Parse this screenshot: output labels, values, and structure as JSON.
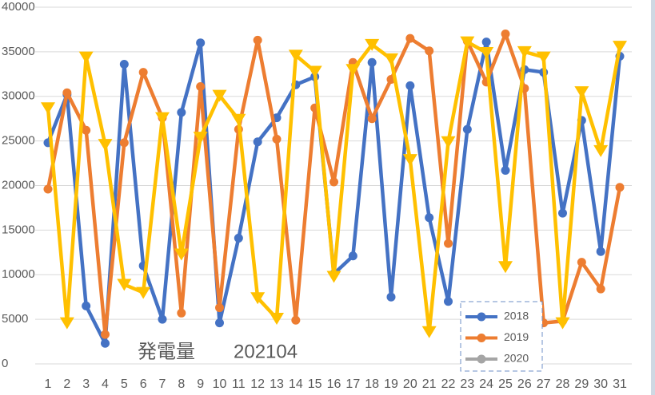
{
  "chart_data": {
    "type": "line",
    "title": "発電量　　202104",
    "categories": [
      "1",
      "2",
      "3",
      "4",
      "5",
      "6",
      "7",
      "8",
      "9",
      "10",
      "11",
      "12",
      "13",
      "14",
      "15",
      "16",
      "17",
      "18",
      "19",
      "20",
      "21",
      "22",
      "23",
      "24",
      "25",
      "26",
      "27",
      "28",
      "29",
      "30",
      "31"
    ],
    "series": [
      {
        "name": "2018",
        "color": "#4472c4",
        "marker": "circle",
        "values": [
          24800,
          30200,
          6500,
          2300,
          33600,
          11000,
          5000,
          28200,
          36000,
          4600,
          14100,
          24900,
          27600,
          31300,
          32200,
          10100,
          12100,
          33800,
          7500,
          31200,
          16400,
          7000,
          26300,
          36100,
          21700,
          33000,
          32700,
          16900,
          27300,
          12600,
          34500
        ]
      },
      {
        "name": "2019",
        "color": "#ed7d31",
        "marker": "circle",
        "values": [
          19600,
          30400,
          26200,
          3300,
          24800,
          32700,
          27600,
          5700,
          31100,
          6300,
          26300,
          36300,
          25200,
          4900,
          28700,
          20400,
          33800,
          27500,
          31900,
          36500,
          35100,
          13500,
          36200,
          31600,
          37000,
          30900,
          4600,
          4800,
          11400,
          8400,
          19800
        ]
      },
      {
        "name": "2020",
        "color": "#a5a5a5",
        "marker": "circle",
        "values": [
          null,
          null,
          null,
          null,
          null,
          null,
          null,
          null,
          null,
          null,
          null,
          null,
          null,
          null,
          null,
          null,
          null,
          null,
          null,
          null,
          null,
          null,
          null,
          null,
          null,
          null,
          null,
          null,
          null,
          null,
          null
        ]
      },
      {
        "color": "#ffc000",
        "marker": "triangle-down",
        "values": [
          28700,
          4600,
          34400,
          24600,
          8900,
          8000,
          27600,
          12300,
          25400,
          30100,
          27400,
          7400,
          5100,
          34600,
          32800,
          9800,
          33000,
          35800,
          34200,
          22900,
          3600,
          24900,
          36100,
          34900,
          10900,
          35000,
          34400,
          4600,
          30500,
          23900,
          35600
        ]
      }
    ],
    "ylim": [
      0,
      40000
    ],
    "yticks": [
      0,
      5000,
      10000,
      15000,
      20000,
      25000,
      30000,
      35000,
      40000
    ],
    "grid": true,
    "legend": "bottom-right"
  }
}
